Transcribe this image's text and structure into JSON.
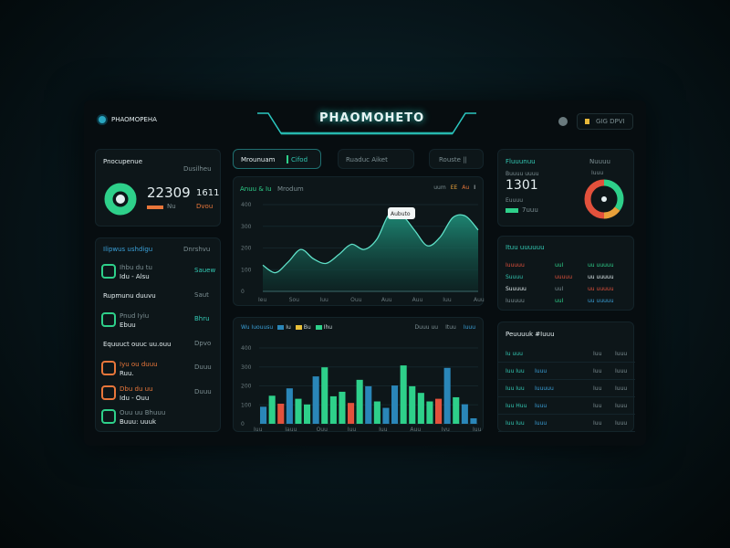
{
  "header": {
    "logo_text": "PHAOMOPEHA",
    "title": "PHAOMOHETO",
    "user_label": "GIG DPVI"
  },
  "summary": {
    "title": "Pnocupenue",
    "subtitle": "Dusilheu",
    "value": "22309",
    "secondary": "1611",
    "bar_label": "Nu",
    "secondary_sub": "Dvou",
    "ring_color": "#2ed08a"
  },
  "tabs": [
    {
      "label": "Mrounuam",
      "badge": "Cifod"
    },
    {
      "label": "Ruaduc Aiket"
    },
    {
      "label": "Rouste ||"
    }
  ],
  "list": {
    "title": "Ilipwus ushdigu",
    "subtitle": "Dnrshvu",
    "items": [
      {
        "name": "Ihbu du tu",
        "sub": "Idu - Alsu",
        "value": "Sauew",
        "kind": "green"
      },
      {
        "name": "Rupmunu duuvu",
        "sub": "",
        "value": "Saut",
        "kind": "plain"
      },
      {
        "name": "Pnud Iyiu",
        "sub": "Ebuu",
        "value": "Bhru",
        "kind": "green"
      },
      {
        "name": "Equuuct ouuc uu.ouu",
        "sub": "",
        "value": "Dpvo",
        "kind": "plain"
      },
      {
        "name": "Iyu ou duuu",
        "sub": "Ruu.",
        "value": "Duuu",
        "kind": "orange"
      },
      {
        "name": "Dbu du uu",
        "sub": "Idu - Ouu",
        "value": "Duuu",
        "kind": "orange"
      },
      {
        "name": "Ouu uu Bhuuu",
        "sub": "Buuu: uuuk",
        "value": "",
        "kind": "green"
      }
    ]
  },
  "area_chart": {
    "title": "Anuu & Iu",
    "subtitle": "Mrodum",
    "legend": [
      "uum",
      "EE",
      "Au",
      "I"
    ],
    "tooltip": "Aubuto"
  },
  "bar_chart": {
    "title": "Wu Iuouusu",
    "legend": [
      "Iu",
      "Bu",
      "Ihu"
    ],
    "controls": [
      "Duuu uu",
      "Ituu",
      "Iuuu"
    ]
  },
  "chart_data": [
    {
      "type": "area",
      "title": "",
      "xlabel": "",
      "ylabel": "",
      "ylim": [
        0,
        400
      ],
      "grid": true,
      "y_ticks": [
        "0",
        "100",
        "200",
        "300",
        "400"
      ],
      "x_ticks": [
        "Ieu",
        "Sou",
        "Iuu",
        "Ouu",
        "Auu",
        "Auu",
        "Iuu",
        "Auu"
      ],
      "values": [
        121,
        86,
        135,
        193,
        150,
        129,
        170,
        217,
        193,
        240,
        357,
        350,
        280,
        210,
        250,
        340,
        347,
        283
      ]
    },
    {
      "type": "bar",
      "title": "",
      "xlabel": "",
      "ylabel": "",
      "ylim": [
        0,
        400
      ],
      "grid": true,
      "y_ticks": [
        "0",
        "100",
        "200",
        "300",
        "400"
      ],
      "x_ticks": [
        "Iuu",
        "Iauu",
        "Ouu",
        "Iuu",
        "Iuu",
        "Auu",
        "Ivu",
        "Iuu"
      ],
      "values": [
        90,
        148,
        106,
        187,
        132,
        102,
        250,
        298,
        145,
        169,
        110,
        232,
        198,
        118,
        84,
        202,
        308,
        198,
        163,
        118,
        132,
        295,
        140,
        103,
        29
      ],
      "colors": [
        "b",
        "g",
        "r",
        "b",
        "g",
        "g",
        "b",
        "g",
        "g",
        "g",
        "r",
        "g",
        "b",
        "g",
        "b",
        "b",
        "g",
        "g",
        "g",
        "g",
        "r",
        "b",
        "g",
        "b",
        "b"
      ]
    }
  ],
  "kpi": {
    "title": "Fluuunuu",
    "subtitle": "Nuuuu",
    "label": "Buuuu uuuu",
    "value": "1301",
    "sub": "Euuuu",
    "bar_label": "7uuu",
    "donut_label": "Iuuu",
    "donut": [
      {
        "value": 35,
        "color": "#2ed08a"
      },
      {
        "value": 15,
        "color": "#e8a03a"
      },
      {
        "value": 50,
        "color": "#e2513c"
      }
    ]
  },
  "status": {
    "title": "Ituu uuuuuu",
    "rows": [
      [
        "Iuuuuu",
        "uuI",
        "uu uuuuu"
      ],
      [
        "Suuuu",
        "uuuuu",
        "uu uuuuu"
      ],
      [
        "Suuuuu",
        "uuI",
        "uu uuuuu"
      ],
      [
        "Iuuuuu",
        "uuI",
        "uu uuuuu"
      ]
    ]
  },
  "table": {
    "title": "Peuuuuk #Iuuu",
    "rows": [
      [
        "Iu uuu",
        "",
        "Iuu",
        "Iuuu"
      ],
      [
        "Iuu Iuu",
        "Iuuu",
        "Iuu",
        "Iuuu"
      ],
      [
        "Iuu Iuu",
        "Iuuuuu",
        "Iuu",
        "Iuuu"
      ],
      [
        "Iuu Huu",
        "Iuuu",
        "Iuu",
        "Iuuu"
      ],
      [
        "Iuu Iuu",
        "Iuuu",
        "Iuu",
        "Iuuu"
      ]
    ]
  }
}
